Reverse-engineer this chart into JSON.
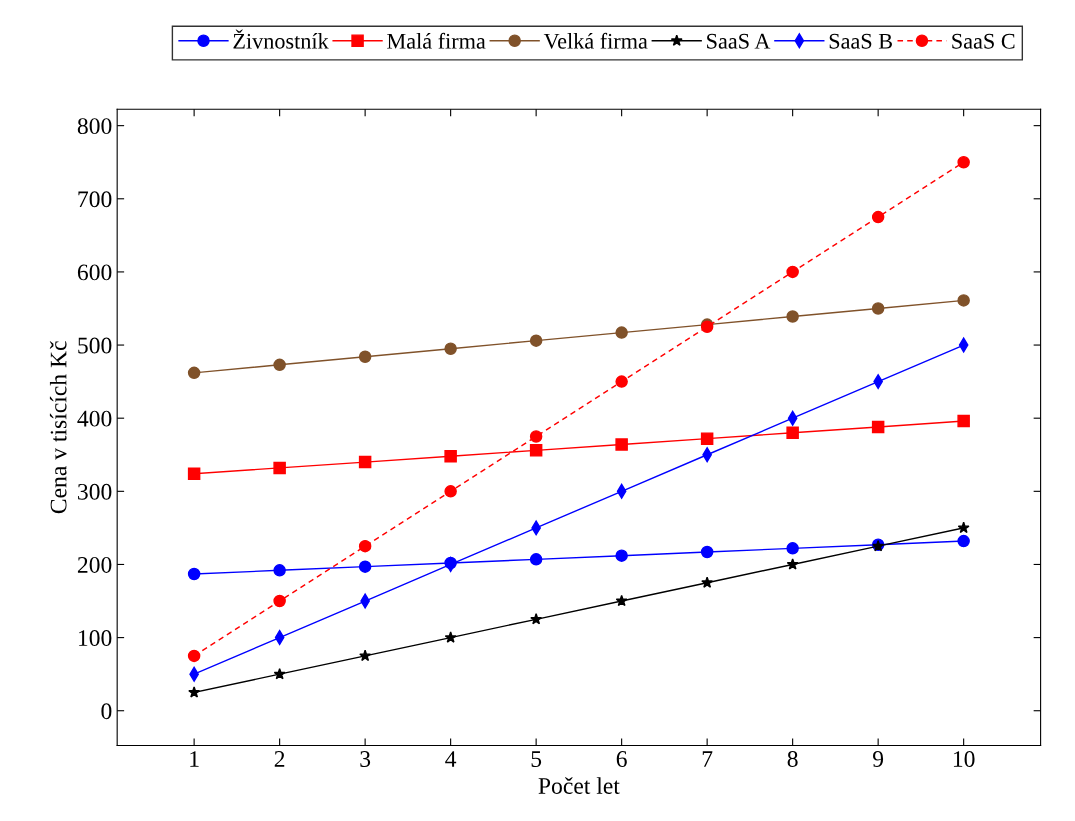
{
  "chart_data": {
    "type": "line",
    "xlabel": "Počet let",
    "ylabel": "Cena v tisících Kč",
    "x": [
      1,
      2,
      3,
      4,
      5,
      6,
      7,
      8,
      9,
      10
    ],
    "series": [
      {
        "name": "Živnostník",
        "color": "#0000ff",
        "marker": "circle",
        "line_style": "solid",
        "values": [
          187,
          192,
          197,
          202,
          207,
          212,
          217,
          222,
          227,
          232
        ]
      },
      {
        "name": "Malá firma",
        "color": "#ff0000",
        "marker": "square",
        "line_style": "solid",
        "values": [
          324,
          332,
          340,
          348,
          356,
          364,
          372,
          380,
          388,
          396
        ]
      },
      {
        "name": "Velká firma",
        "color": "#80522a",
        "marker": "circle",
        "line_style": "solid",
        "values": [
          462,
          473,
          484,
          495,
          506,
          517,
          528,
          539,
          550,
          561
        ]
      },
      {
        "name": "SaaS A",
        "color": "#000000",
        "marker": "star",
        "line_style": "solid",
        "values": [
          25,
          50,
          75,
          100,
          125,
          150,
          175,
          200,
          225,
          250
        ]
      },
      {
        "name": "SaaS B",
        "color": "#0000ff",
        "marker": "diamond",
        "line_style": "solid",
        "values": [
          50,
          100,
          150,
          200,
          250,
          300,
          350,
          400,
          450,
          500
        ]
      },
      {
        "name": "SaaS C",
        "color": "#ff0000",
        "marker": "circle",
        "line_style": "dashed",
        "values": [
          75,
          150,
          225,
          300,
          375,
          450,
          525,
          600,
          675,
          750
        ]
      }
    ],
    "xlim": [
      0.1,
      10.9
    ],
    "xticks": [
      1,
      2,
      3,
      4,
      5,
      6,
      7,
      8,
      9,
      10
    ],
    "ylim": [
      -47.5,
      822.5
    ],
    "yticks": [
      0,
      100,
      200,
      300,
      400,
      500,
      600,
      700,
      800
    ],
    "grid": false,
    "legend": "top"
  }
}
